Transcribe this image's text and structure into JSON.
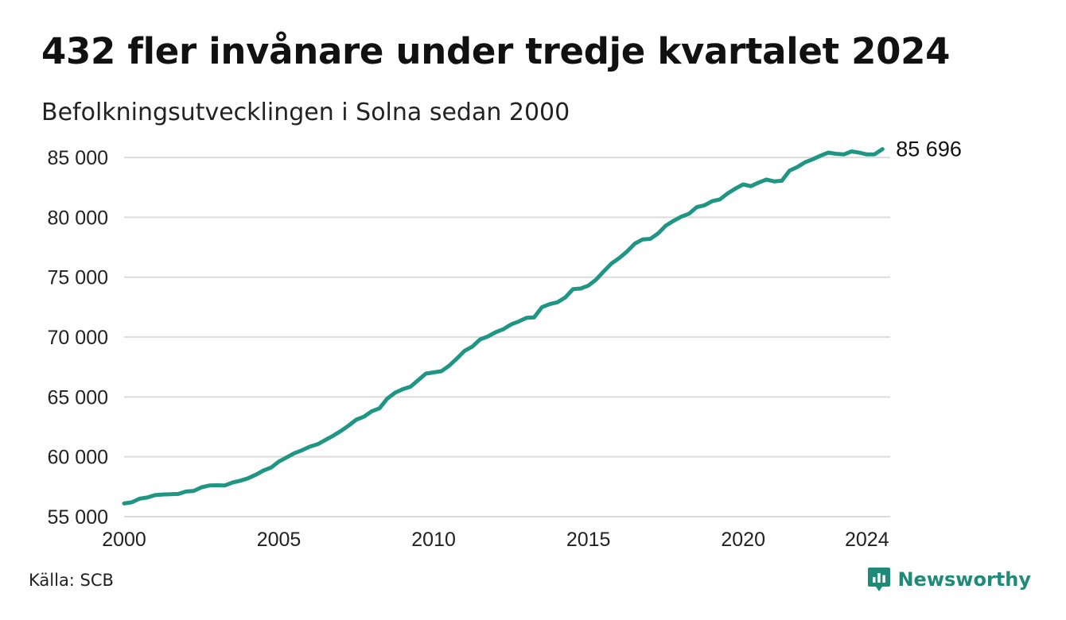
{
  "title": "432 fler invånare under tredje kvartalet 2024",
  "subtitle": "Befolkningsutvecklingen i Solna sedan 2000",
  "source": "Källa: SCB",
  "brand": {
    "name": "Newsworthy",
    "logo_icon": "newsworthy-logo-icon",
    "color": "#1f8a78"
  },
  "colors": {
    "line": "#1f9683",
    "grid": "#dcdcdc",
    "text": "#111111"
  },
  "chart_data": {
    "type": "line",
    "title": "432 fler invånare under tredje kvartalet 2024",
    "subtitle": "Befolkningsutvecklingen i Solna sedan 2000",
    "xlabel": "",
    "ylabel": "",
    "xlim": [
      2000,
      2024.75
    ],
    "ylim": [
      55000,
      86000
    ],
    "x_ticks": [
      2000,
      2005,
      2010,
      2015,
      2020,
      2024
    ],
    "x_tick_labels": [
      "2000",
      "2005",
      "2010",
      "2015",
      "2020",
      "2024"
    ],
    "y_ticks": [
      55000,
      60000,
      65000,
      70000,
      75000,
      80000,
      85000
    ],
    "y_tick_labels": [
      "55 000",
      "60 000",
      "65 000",
      "70 000",
      "75 000",
      "80 000",
      "85 000"
    ],
    "grid": "horizontal",
    "end_label": "85 696",
    "x_step": "quarter",
    "values": [
      56100,
      56200,
      56500,
      56600,
      56800,
      56850,
      56880,
      56900,
      57100,
      57150,
      57450,
      57600,
      57620,
      57600,
      57850,
      58000,
      58200,
      58500,
      58850,
      59100,
      59600,
      59950,
      60300,
      60550,
      60850,
      61050,
      61400,
      61750,
      62150,
      62600,
      63100,
      63350,
      63800,
      64050,
      64850,
      65350,
      65650,
      65850,
      66400,
      66950,
      67050,
      67150,
      67600,
      68200,
      68850,
      69200,
      69800,
      70050,
      70400,
      70650,
      71050,
      71300,
      71600,
      71650,
      72500,
      72750,
      72900,
      73300,
      74000,
      74050,
      74300,
      74800,
      75500,
      76150,
      76600,
      77150,
      77800,
      78150,
      78200,
      78650,
      79300,
      79700,
      80050,
      80300,
      80850,
      81000,
      81350,
      81500,
      82000,
      82400,
      82750,
      82600,
      82900,
      83150,
      83000,
      83050,
      83900,
      84200,
      84600,
      84850,
      85150,
      85400,
      85300,
      85250,
      85500,
      85400,
      85250,
      85264,
      85696
    ]
  }
}
